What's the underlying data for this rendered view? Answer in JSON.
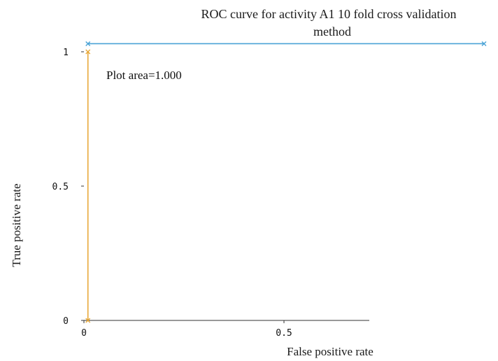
{
  "chart_data": {
    "type": "line",
    "title_lines": [
      "ROC curve for activity A1 10 fold cross validation",
      "method"
    ],
    "xlabel": "False  positive  rate",
    "ylabel": "True  positive  rate",
    "xlim": [
      0,
      1
    ],
    "ylim": [
      0,
      1
    ],
    "x_ticks": [
      {
        "value": 0,
        "label": "0"
      },
      {
        "value": 0.5,
        "label": "0.5"
      }
    ],
    "y_ticks": [
      {
        "value": 0,
        "label": "0"
      },
      {
        "value": 0.5,
        "label": "0.5"
      },
      {
        "value": 1,
        "label": "1"
      }
    ],
    "annotation": "Plot area=1.000",
    "grid": false,
    "series": [
      {
        "color": "#e8a838",
        "marker": "x",
        "points": [
          [
            0.01,
            0
          ],
          [
            0.01,
            1.0
          ]
        ]
      },
      {
        "color": "#4aa3d6",
        "marker": "x",
        "points": [
          [
            0.01,
            1.03
          ],
          [
            1,
            1.03
          ]
        ]
      }
    ]
  }
}
